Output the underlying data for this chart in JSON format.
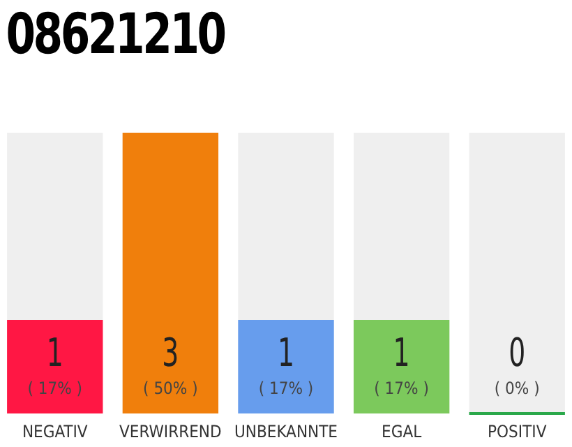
{
  "chart_data": {
    "type": "bar",
    "title": "08621210",
    "categories": [
      "NEGATIV",
      "VERWIRREND",
      "UNBEKANNTE",
      "EGAL",
      "POSITIV"
    ],
    "values": [
      1,
      3,
      1,
      1,
      0
    ],
    "colors": [
      "#ff1744",
      "#f07f0c",
      "#679ded",
      "#7cc95c",
      "#2aa84a"
    ],
    "ylim": [
      0,
      3
    ],
    "data_labels": true,
    "annotations": [
      "( 17% )",
      "( 50% )",
      "( 17% )",
      "( 17% )",
      "( 0% )"
    ]
  }
}
